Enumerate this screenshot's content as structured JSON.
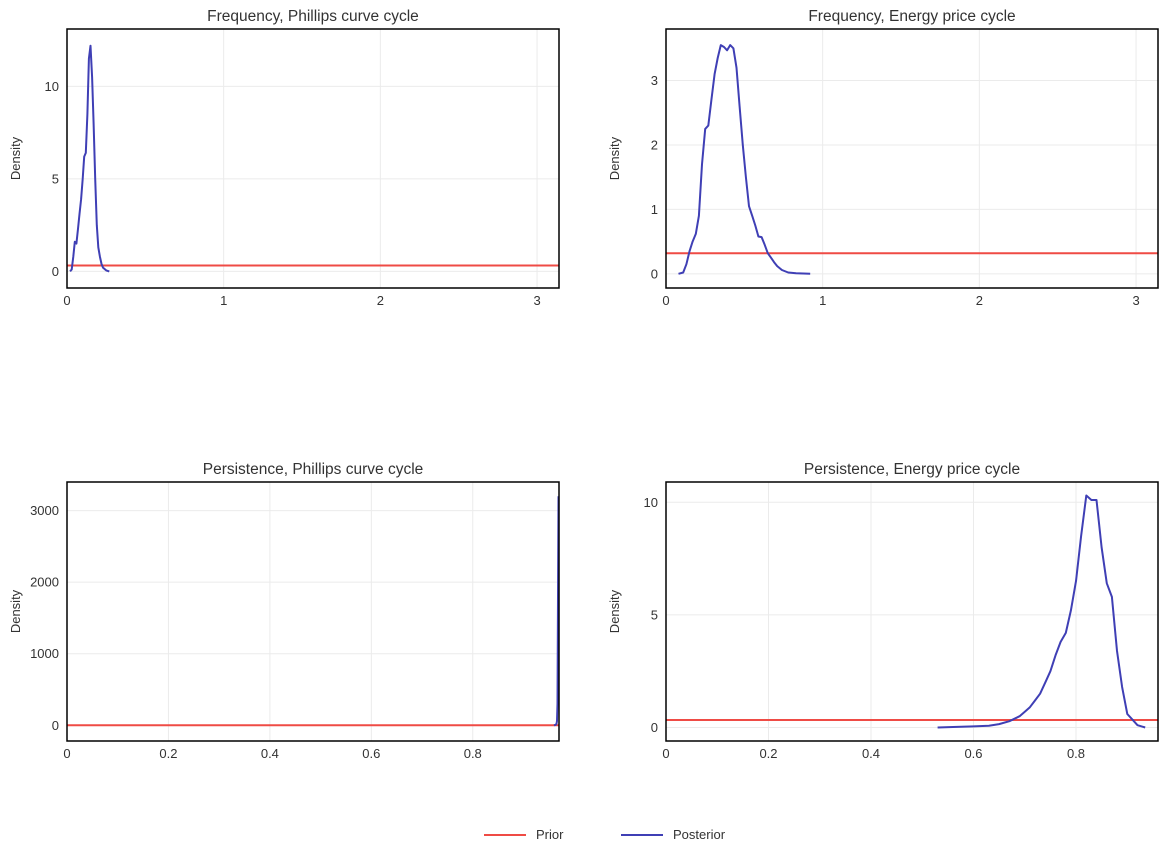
{
  "colors": {
    "prior": "#ef4b45",
    "posterior": "#3f3fb5"
  },
  "legend": {
    "prior": "Prior",
    "posterior": "Posterior"
  },
  "chart_data": [
    {
      "type": "line",
      "title": "Frequency, Phillips curve cycle",
      "ylabel": "Density",
      "xlim": [
        0,
        3.14
      ],
      "ylim": [
        -0.9,
        13.1
      ],
      "xticks": [
        0,
        1,
        2,
        3
      ],
      "yticks": [
        0,
        5,
        10
      ],
      "series": [
        {
          "name": "Prior",
          "x": [
            0,
            3.14
          ],
          "y": [
            0.318,
            0.318
          ]
        },
        {
          "name": "Posterior",
          "x": [
            0.02,
            0.03,
            0.04,
            0.05,
            0.06,
            0.07,
            0.08,
            0.09,
            0.1,
            0.11,
            0.12,
            0.13,
            0.14,
            0.15,
            0.16,
            0.17,
            0.18,
            0.19,
            0.2,
            0.21,
            0.22,
            0.23,
            0.25,
            0.27
          ],
          "y": [
            0.0,
            0.1,
            0.8,
            1.6,
            1.5,
            2.3,
            3.1,
            3.9,
            5.0,
            6.2,
            6.4,
            8.5,
            11.5,
            12.2,
            10.5,
            8.0,
            5.0,
            2.5,
            1.3,
            0.8,
            0.4,
            0.2,
            0.05,
            0.0
          ]
        }
      ]
    },
    {
      "type": "line",
      "title": "Frequency, Energy price cycle",
      "ylabel": "Density",
      "xlim": [
        0,
        3.14
      ],
      "ylim": [
        -0.22,
        3.8
      ],
      "xticks": [
        0,
        1,
        2,
        3
      ],
      "yticks": [
        0,
        1,
        2,
        3
      ],
      "series": [
        {
          "name": "Prior",
          "x": [
            0,
            3.14
          ],
          "y": [
            0.318,
            0.318
          ]
        },
        {
          "name": "Posterior",
          "x": [
            0.08,
            0.11,
            0.13,
            0.15,
            0.17,
            0.19,
            0.21,
            0.23,
            0.25,
            0.27,
            0.29,
            0.31,
            0.33,
            0.35,
            0.37,
            0.39,
            0.41,
            0.43,
            0.45,
            0.47,
            0.49,
            0.51,
            0.53,
            0.55,
            0.57,
            0.59,
            0.61,
            0.63,
            0.65,
            0.67,
            0.69,
            0.71,
            0.74,
            0.78,
            0.83,
            0.92
          ],
          "y": [
            0.0,
            0.02,
            0.15,
            0.35,
            0.5,
            0.62,
            0.9,
            1.7,
            2.25,
            2.3,
            2.7,
            3.1,
            3.35,
            3.55,
            3.52,
            3.47,
            3.55,
            3.5,
            3.2,
            2.6,
            2.0,
            1.5,
            1.05,
            0.9,
            0.75,
            0.58,
            0.57,
            0.45,
            0.32,
            0.25,
            0.18,
            0.12,
            0.06,
            0.02,
            0.01,
            0.0
          ]
        }
      ]
    },
    {
      "type": "line",
      "title": "Persistence, Phillips curve cycle",
      "ylabel": "Density",
      "xlim": [
        0,
        0.97
      ],
      "ylim": [
        -220,
        3400
      ],
      "xticks": [
        0,
        0.2,
        0.4,
        0.6,
        0.8
      ],
      "yticks": [
        0,
        1000,
        2000,
        3000
      ],
      "series": [
        {
          "name": "Prior",
          "x": [
            0,
            0.97
          ],
          "y": [
            0,
            0
          ]
        },
        {
          "name": "Posterior",
          "x": [
            0.96,
            0.963,
            0.965,
            0.966,
            0.967,
            0.968,
            0.969
          ],
          "y": [
            0,
            5,
            20,
            60,
            300,
            1800,
            3200
          ]
        }
      ]
    },
    {
      "type": "line",
      "title": "Persistence, Energy price cycle",
      "ylabel": "Density",
      "xlim": [
        0,
        0.96
      ],
      "ylim": [
        -0.6,
        10.9
      ],
      "xticks": [
        0,
        0.2,
        0.4,
        0.6,
        0.8
      ],
      "yticks": [
        0,
        5,
        10
      ],
      "series": [
        {
          "name": "Prior",
          "x": [
            0,
            0.96
          ],
          "y": [
            0.333,
            0.333
          ]
        },
        {
          "name": "Posterior",
          "x": [
            0.53,
            0.56,
            0.6,
            0.63,
            0.65,
            0.67,
            0.69,
            0.7,
            0.71,
            0.72,
            0.73,
            0.74,
            0.75,
            0.76,
            0.77,
            0.78,
            0.79,
            0.8,
            0.81,
            0.82,
            0.83,
            0.84,
            0.85,
            0.86,
            0.87,
            0.88,
            0.89,
            0.9,
            0.91,
            0.92,
            0.935
          ],
          "y": [
            0.0,
            0.02,
            0.05,
            0.08,
            0.15,
            0.28,
            0.5,
            0.7,
            0.9,
            1.2,
            1.5,
            2.0,
            2.5,
            3.2,
            3.8,
            4.2,
            5.2,
            6.5,
            8.5,
            10.3,
            10.1,
            10.1,
            8.0,
            6.4,
            5.8,
            3.4,
            1.8,
            0.6,
            0.35,
            0.1,
            0.0
          ]
        }
      ]
    }
  ]
}
